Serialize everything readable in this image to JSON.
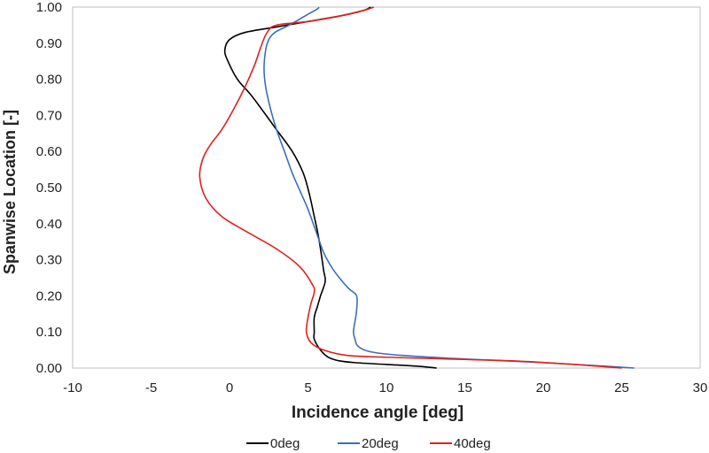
{
  "chart_data": {
    "type": "line",
    "title": "",
    "xlabel": "Incidence angle [deg]",
    "ylabel": "Spanwise Location [-]",
    "xlim": [
      -10,
      30
    ],
    "ylim": [
      0,
      1
    ],
    "x_ticks": [
      "-10",
      "-5",
      "0",
      "5",
      "10",
      "15",
      "20",
      "25",
      "30"
    ],
    "y_ticks": [
      "0.00",
      "0.10",
      "0.20",
      "0.30",
      "0.40",
      "0.50",
      "0.60",
      "0.70",
      "0.80",
      "0.90",
      "1.00"
    ],
    "grid": false,
    "legend_position": "bottom",
    "series": [
      {
        "name": "0deg",
        "color": "#000000",
        "points": [
          [
            13.2,
            0.0
          ],
          [
            12.0,
            0.005
          ],
          [
            10.0,
            0.01
          ],
          [
            8.0,
            0.015
          ],
          [
            7.0,
            0.02
          ],
          [
            6.3,
            0.03
          ],
          [
            5.8,
            0.05
          ],
          [
            5.4,
            0.08
          ],
          [
            5.4,
            0.1
          ],
          [
            5.4,
            0.14
          ],
          [
            5.6,
            0.17
          ],
          [
            5.8,
            0.2
          ],
          [
            6.1,
            0.24
          ],
          [
            6.0,
            0.27
          ],
          [
            5.8,
            0.33
          ],
          [
            5.6,
            0.38
          ],
          [
            5.4,
            0.42
          ],
          [
            5.1,
            0.48
          ],
          [
            4.7,
            0.54
          ],
          [
            4.0,
            0.6
          ],
          [
            3.0,
            0.66
          ],
          [
            2.0,
            0.72
          ],
          [
            1.3,
            0.76
          ],
          [
            0.5,
            0.8
          ],
          [
            -0.1,
            0.85
          ],
          [
            -0.3,
            0.88
          ],
          [
            0.0,
            0.91
          ],
          [
            1.0,
            0.93
          ],
          [
            3.0,
            0.945
          ],
          [
            5.0,
            0.96
          ],
          [
            7.0,
            0.975
          ],
          [
            8.5,
            0.99
          ],
          [
            9.0,
            1.0
          ]
        ]
      },
      {
        "name": "20deg",
        "color": "#3a6fba",
        "points": [
          [
            25.8,
            0.0
          ],
          [
            24.0,
            0.005
          ],
          [
            20.0,
            0.015
          ],
          [
            15.0,
            0.025
          ],
          [
            11.0,
            0.035
          ],
          [
            9.0,
            0.045
          ],
          [
            8.2,
            0.06
          ],
          [
            8.0,
            0.08
          ],
          [
            7.9,
            0.1
          ],
          [
            8.0,
            0.13
          ],
          [
            8.1,
            0.16
          ],
          [
            8.1,
            0.2
          ],
          [
            7.6,
            0.22
          ],
          [
            7.0,
            0.25
          ],
          [
            6.5,
            0.28
          ],
          [
            6.0,
            0.32
          ],
          [
            5.5,
            0.38
          ],
          [
            5.0,
            0.44
          ],
          [
            4.5,
            0.49
          ],
          [
            4.0,
            0.54
          ],
          [
            3.5,
            0.6
          ],
          [
            3.0,
            0.66
          ],
          [
            2.6,
            0.72
          ],
          [
            2.3,
            0.78
          ],
          [
            2.2,
            0.83
          ],
          [
            2.3,
            0.88
          ],
          [
            2.5,
            0.91
          ],
          [
            2.9,
            0.93
          ],
          [
            3.8,
            0.95
          ],
          [
            4.8,
            0.975
          ],
          [
            5.6,
            0.995
          ],
          [
            5.7,
            1.0
          ]
        ]
      },
      {
        "name": "40deg",
        "color": "#e02020",
        "points": [
          [
            25.0,
            0.0
          ],
          [
            22.0,
            0.01
          ],
          [
            18.0,
            0.02
          ],
          [
            14.0,
            0.025
          ],
          [
            10.0,
            0.03
          ],
          [
            7.5,
            0.035
          ],
          [
            6.0,
            0.05
          ],
          [
            5.2,
            0.07
          ],
          [
            4.9,
            0.1
          ],
          [
            5.0,
            0.14
          ],
          [
            5.2,
            0.18
          ],
          [
            5.4,
            0.21
          ],
          [
            5.3,
            0.23
          ],
          [
            4.5,
            0.28
          ],
          [
            3.0,
            0.33
          ],
          [
            1.0,
            0.38
          ],
          [
            -0.5,
            0.42
          ],
          [
            -1.5,
            0.47
          ],
          [
            -1.9,
            0.53
          ],
          [
            -1.7,
            0.58
          ],
          [
            -1.2,
            0.62
          ],
          [
            -0.5,
            0.66
          ],
          [
            0.3,
            0.72
          ],
          [
            1.0,
            0.78
          ],
          [
            1.6,
            0.84
          ],
          [
            2.0,
            0.89
          ],
          [
            2.4,
            0.93
          ],
          [
            3.0,
            0.95
          ],
          [
            5.0,
            0.96
          ],
          [
            7.0,
            0.975
          ],
          [
            8.5,
            0.99
          ],
          [
            9.2,
            1.0
          ]
        ]
      }
    ]
  }
}
